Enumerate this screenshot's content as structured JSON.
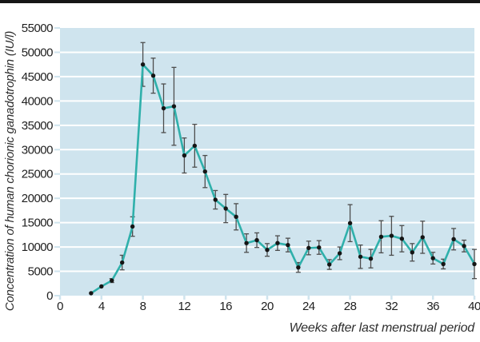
{
  "page": {
    "top_bar_color": "#161616",
    "background": "#ffffff"
  },
  "chart_data": {
    "type": "line",
    "title": "",
    "xlabel": "Weeks after last menstrual period",
    "ylabel": "Concentration of human chorionic ganadotrophin (IU/l)",
    "x": [
      3,
      4,
      5,
      6,
      7,
      8,
      9,
      10,
      11,
      12,
      13,
      14,
      15,
      16,
      17,
      18,
      19,
      20,
      21,
      22,
      23,
      24,
      25,
      26,
      27,
      28,
      29,
      30,
      31,
      32,
      33,
      34,
      35,
      36,
      37,
      38,
      39,
      40
    ],
    "values": [
      500,
      1900,
      3100,
      6800,
      14200,
      47500,
      45200,
      38500,
      38900,
      28800,
      30800,
      25500,
      19700,
      17900,
      16200,
      10800,
      11400,
      9400,
      10800,
      10400,
      5800,
      9800,
      9900,
      6400,
      8700,
      14900,
      8000,
      7600,
      12100,
      12300,
      11700,
      8900,
      12000,
      7700,
      6500,
      11600,
      10200,
      6500
    ],
    "errors": [
      0,
      0,
      400,
      1500,
      2000,
      4500,
      3600,
      5000,
      8000,
      3600,
      4400,
      3300,
      1900,
      2900,
      2700,
      1900,
      1500,
      1300,
      1500,
      1400,
      1000,
      1400,
      1400,
      1000,
      1300,
      3800,
      2400,
      1900,
      3300,
      4000,
      2700,
      1800,
      3300,
      1200,
      1000,
      2200,
      1200,
      3000
    ],
    "xticks": [
      0,
      4,
      8,
      12,
      16,
      20,
      24,
      28,
      32,
      36,
      40
    ],
    "yticks": [
      0,
      5000,
      10000,
      15000,
      20000,
      25000,
      30000,
      35000,
      40000,
      45000,
      50000,
      55000
    ],
    "xlim": [
      0,
      40
    ],
    "ylim": [
      0,
      55000
    ],
    "grid": "horizontal white lines",
    "legend": "none",
    "plot_bg_color": "#cfe4ee",
    "line_color": "#2fb0ab",
    "marker_color": "#151515",
    "error_bar_color": "#4d4d4d",
    "tick_label_color": "#1f1f1f"
  }
}
